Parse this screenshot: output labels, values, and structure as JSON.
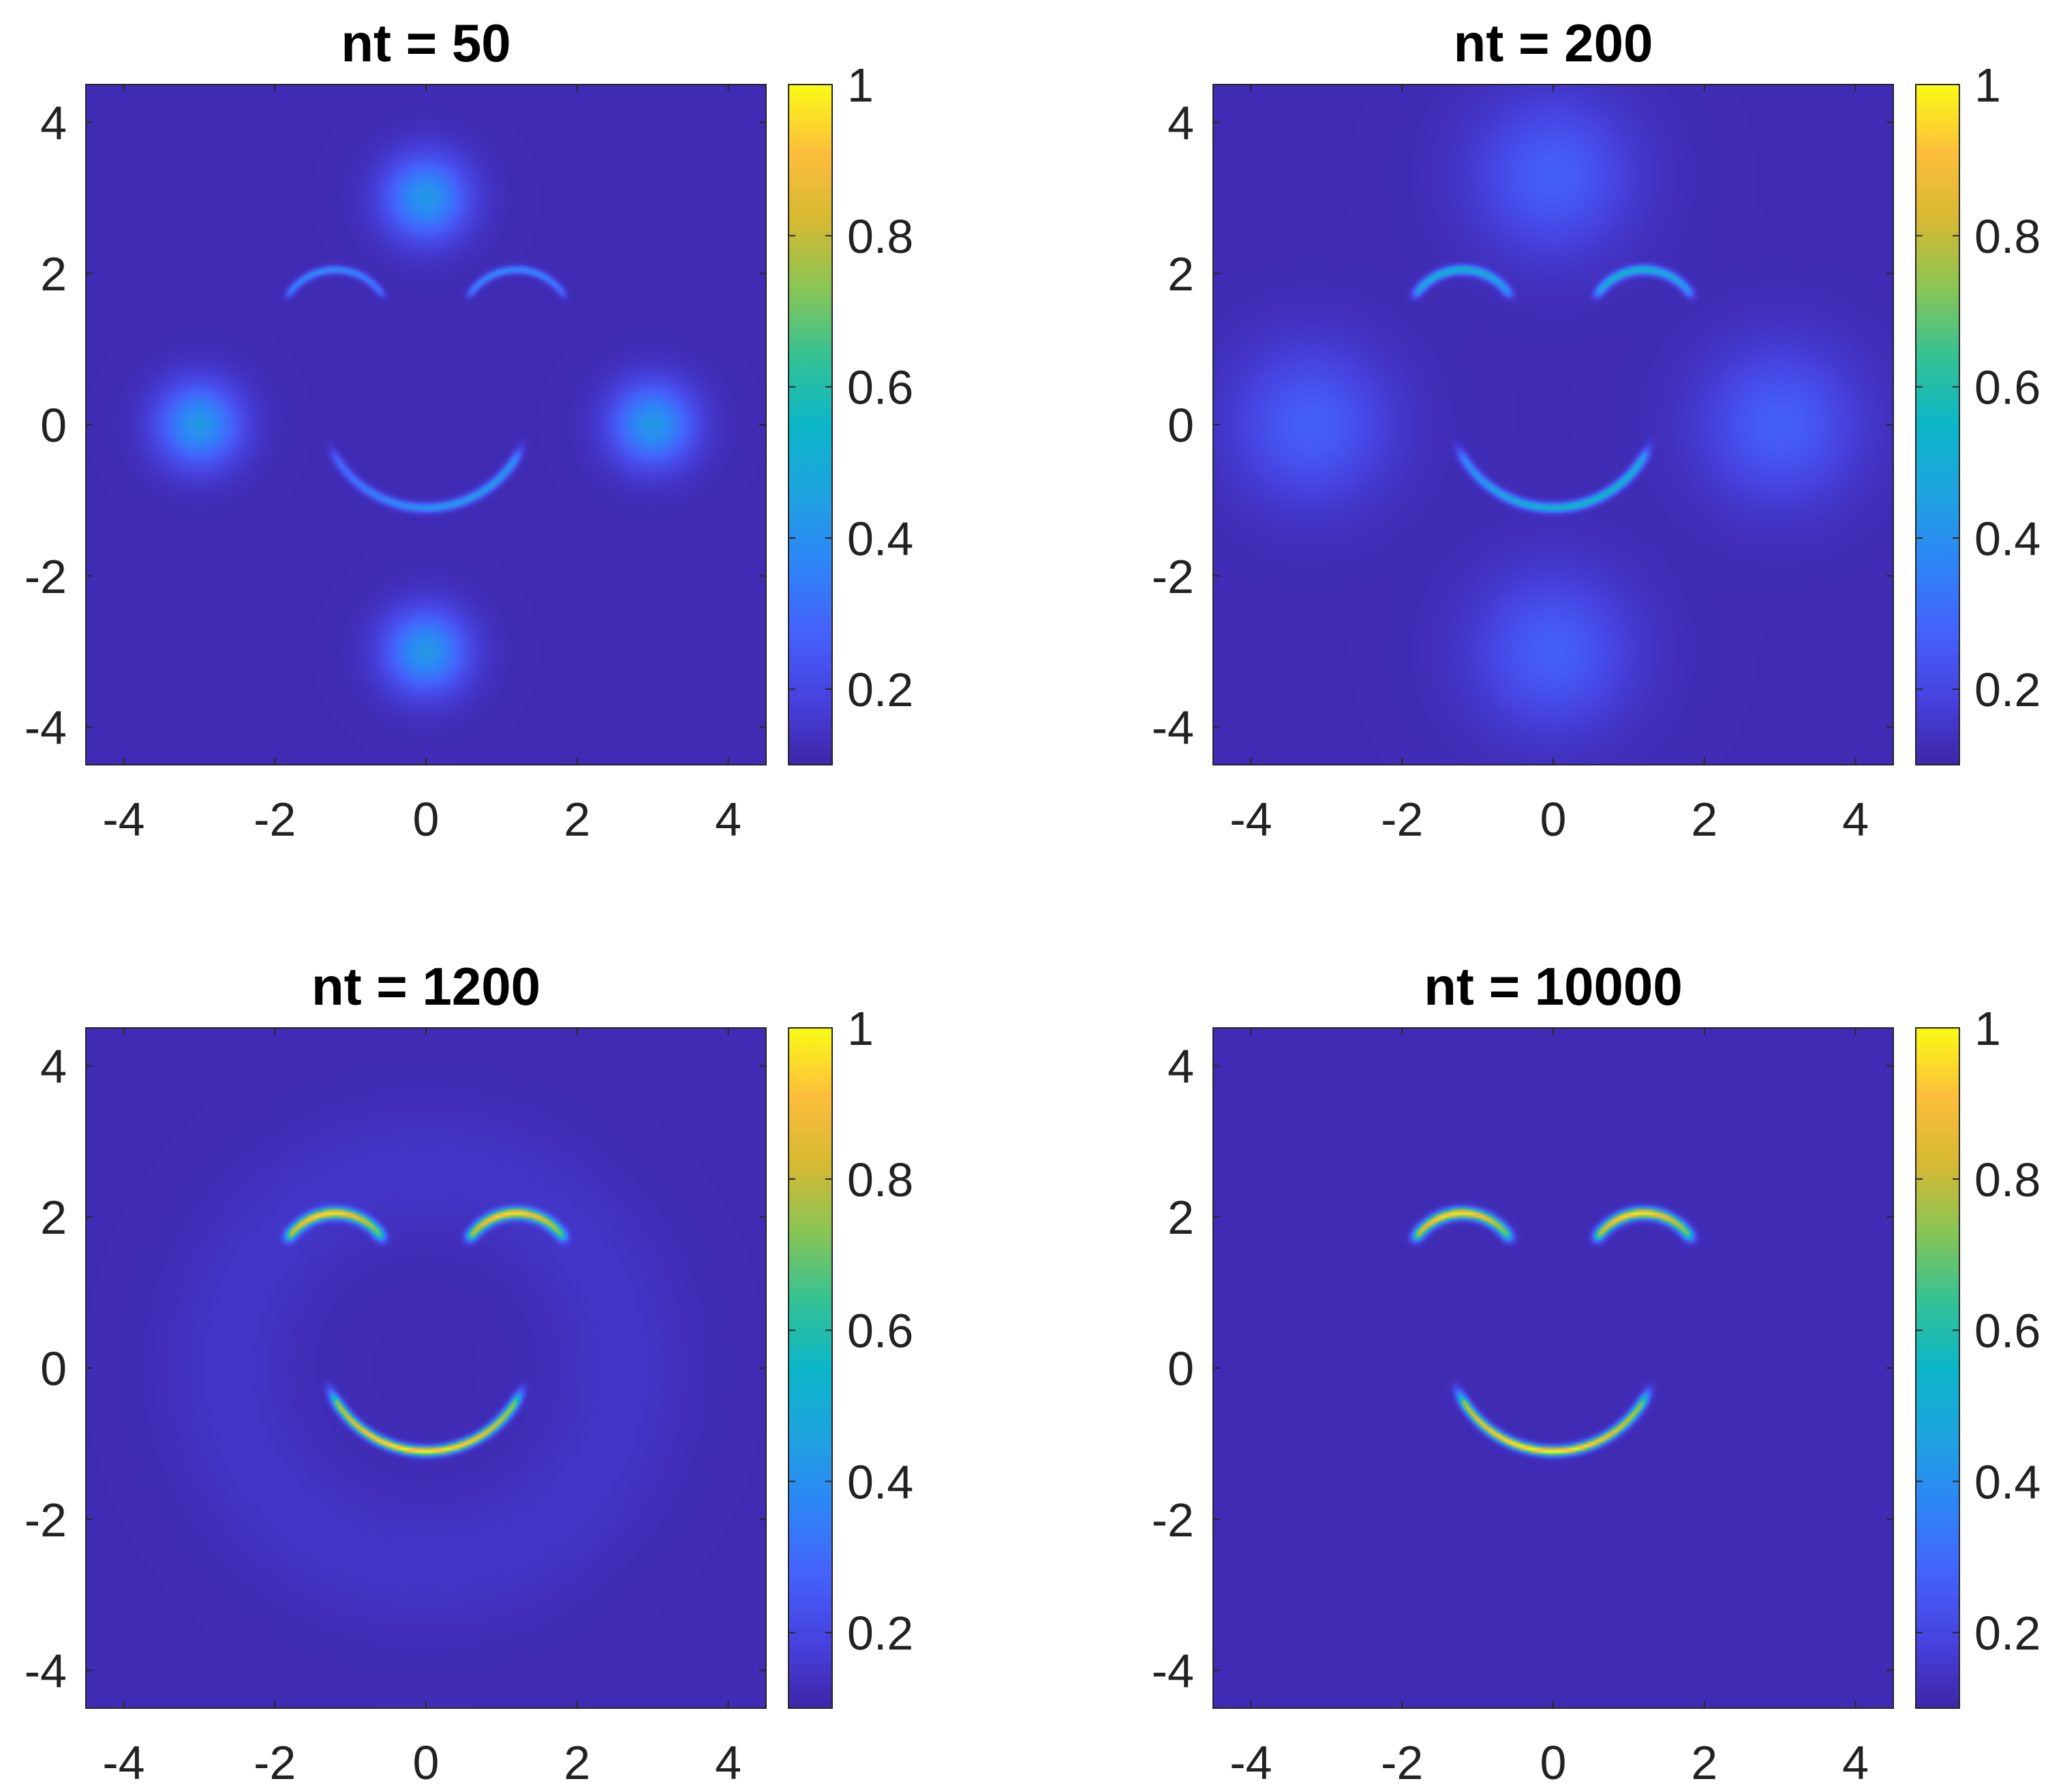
{
  "figure": {
    "colormap": "parula",
    "background_level": 0.12
  },
  "chart_data": [
    {
      "type": "heatmap",
      "title": "nt = 50",
      "xlim": [
        -4.5,
        4.5
      ],
      "ylim": [
        -4.5,
        4.5
      ],
      "xticks": [
        -4,
        -2,
        0,
        2,
        4
      ],
      "yticks": [
        -4,
        -2,
        0,
        2,
        4
      ],
      "colorbar": {
        "clim": [
          0.1,
          1
        ],
        "ticks": [
          0.2,
          0.4,
          0.6,
          0.8,
          1
        ],
        "tick_labels": [
          "0.2",
          "0.4",
          "0.6",
          "0.8",
          "1"
        ]
      },
      "features": {
        "eyes": {
          "centers": [
            [
              -1.2,
              1.3
            ],
            [
              1.2,
              1.3
            ]
          ],
          "radius": 0.75,
          "from_deg": 40,
          "to_deg": 140,
          "peak": 0.3,
          "width": 0.05
        },
        "mouth": {
          "center": [
            0,
            0.3
          ],
          "radius": 1.4,
          "from_deg": 215,
          "to_deg": 325,
          "peak_left": 0.22,
          "peak_right": 0.38,
          "width": 0.06
        },
        "blobs": {
          "centers": [
            [
              0,
              3
            ],
            [
              0,
              -3
            ],
            [
              -3,
              0
            ],
            [
              3,
              0
            ]
          ],
          "sigma": 0.38,
          "peak": 0.3
        },
        "halo": 0
      }
    },
    {
      "type": "heatmap",
      "title": "nt = 200",
      "xlim": [
        -4.5,
        4.5
      ],
      "ylim": [
        -4.5,
        4.5
      ],
      "xticks": [
        -4,
        -2,
        0,
        2,
        4
      ],
      "yticks": [
        -4,
        -2,
        0,
        2,
        4
      ],
      "colorbar": {
        "clim": [
          0.1,
          1
        ],
        "ticks": [
          0.2,
          0.4,
          0.6,
          0.8,
          1
        ],
        "tick_labels": [
          "0.2",
          "0.4",
          "0.6",
          "0.8",
          "1"
        ]
      },
      "features": {
        "eyes": {
          "centers": [
            [
              -1.2,
              1.3
            ],
            [
              1.2,
              1.3
            ]
          ],
          "radius": 0.75,
          "from_deg": 40,
          "to_deg": 140,
          "peak": 0.45,
          "width": 0.06
        },
        "mouth": {
          "center": [
            0,
            0.3
          ],
          "radius": 1.4,
          "from_deg": 215,
          "to_deg": 325,
          "peak_left": 0.35,
          "peak_right": 0.5,
          "width": 0.06
        },
        "blobs": {
          "centers": [
            [
              0,
              3.3
            ],
            [
              0,
              -3.0
            ],
            [
              -3.2,
              0
            ],
            [
              3.0,
              0
            ]
          ],
          "sigma": 0.7,
          "peak": 0.15
        },
        "halo": 0
      }
    },
    {
      "type": "heatmap",
      "title": "nt = 1200",
      "xlim": [
        -4.5,
        4.5
      ],
      "ylim": [
        -4.5,
        4.5
      ],
      "xticks": [
        -4,
        -2,
        0,
        2,
        4
      ],
      "yticks": [
        -4,
        -2,
        0,
        2,
        4
      ],
      "colorbar": {
        "clim": [
          0.1,
          1
        ],
        "ticks": [
          0.2,
          0.4,
          0.6,
          0.8,
          1
        ],
        "tick_labels": [
          "0.2",
          "0.4",
          "0.6",
          "0.8",
          "1"
        ]
      },
      "features": {
        "eyes": {
          "centers": [
            [
              -1.2,
              1.3
            ],
            [
              1.2,
              1.3
            ]
          ],
          "radius": 0.75,
          "from_deg": 40,
          "to_deg": 140,
          "peak": 0.88,
          "width": 0.07
        },
        "mouth": {
          "center": [
            0,
            0.3
          ],
          "radius": 1.4,
          "from_deg": 215,
          "to_deg": 325,
          "peak_left": 0.9,
          "peak_right": 0.85,
          "width": 0.06
        },
        "blobs": {
          "centers": [],
          "sigma": 1,
          "peak": 0
        },
        "halo": 0.03
      }
    },
    {
      "type": "heatmap",
      "title": "nt = 10000",
      "xlim": [
        -4.5,
        4.5
      ],
      "ylim": [
        -4.5,
        4.5
      ],
      "xticks": [
        -4,
        -2,
        0,
        2,
        4
      ],
      "yticks": [
        -4,
        -2,
        0,
        2,
        4
      ],
      "colorbar": {
        "clim": [
          0.1,
          1
        ],
        "ticks": [
          0.2,
          0.4,
          0.6,
          0.8,
          1
        ],
        "tick_labels": [
          "0.2",
          "0.4",
          "0.6",
          "0.8",
          "1"
        ]
      },
      "features": {
        "eyes": {
          "centers": [
            [
              -1.2,
              1.3
            ],
            [
              1.2,
              1.3
            ]
          ],
          "radius": 0.75,
          "from_deg": 40,
          "to_deg": 140,
          "peak": 0.92,
          "width": 0.07
        },
        "mouth": {
          "center": [
            0,
            0.3
          ],
          "radius": 1.4,
          "from_deg": 215,
          "to_deg": 325,
          "peak_left": 0.92,
          "peak_right": 0.85,
          "width": 0.06
        },
        "blobs": {
          "centers": [],
          "sigma": 1,
          "peak": 0
        },
        "halo": 0
      }
    }
  ]
}
